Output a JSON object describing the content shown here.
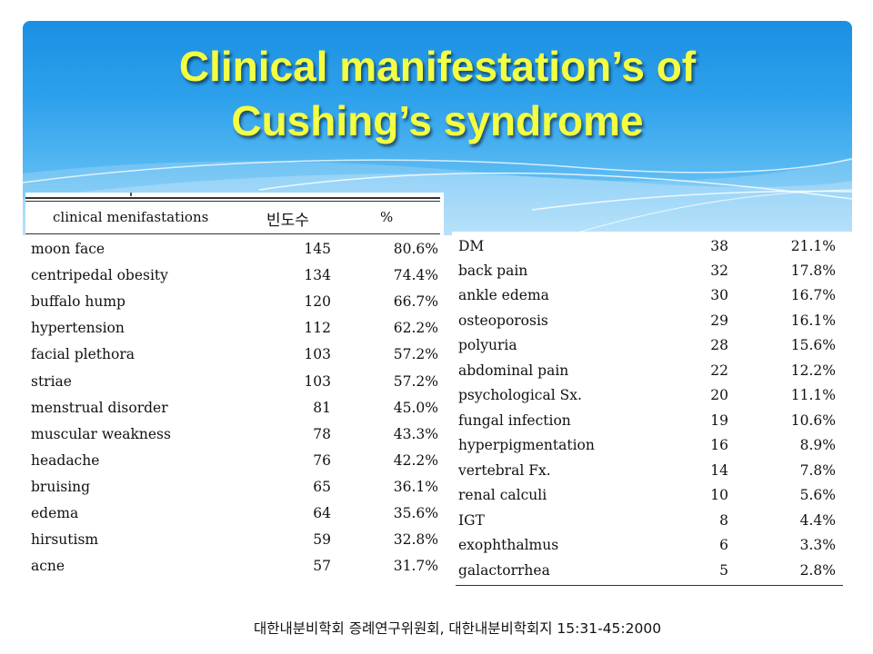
{
  "title_line1": "Clinical manifestation’s of",
  "title_line2": "Cushing’s syndrome",
  "table_left": {
    "headers": {
      "name": "clinical  menifastations",
      "count": "빈도수",
      "percent": "%"
    },
    "rows": [
      {
        "name": "moon  face",
        "count": "145",
        "percent": "80.6%"
      },
      {
        "name": "centripedal  obesity",
        "count": "134",
        "percent": "74.4%"
      },
      {
        "name": "buffalo  hump",
        "count": "120",
        "percent": "66.7%"
      },
      {
        "name": "hypertension",
        "count": "112",
        "percent": "62.2%"
      },
      {
        "name": "facial  plethora",
        "count": "103",
        "percent": "57.2%"
      },
      {
        "name": "striae",
        "count": "103",
        "percent": "57.2%"
      },
      {
        "name": "menstrual  disorder",
        "count": "81",
        "percent": "45.0%"
      },
      {
        "name": "muscular  weakness",
        "count": "78",
        "percent": "43.3%"
      },
      {
        "name": "headache",
        "count": "76",
        "percent": "42.2%"
      },
      {
        "name": "bruising",
        "count": "65",
        "percent": "36.1%"
      },
      {
        "name": "edema",
        "count": "64",
        "percent": "35.6%"
      },
      {
        "name": "hirsutism",
        "count": "59",
        "percent": "32.8%"
      },
      {
        "name": "acne",
        "count": "57",
        "percent": "31.7%"
      }
    ]
  },
  "table_right": {
    "rows": [
      {
        "name": "DM",
        "count": "38",
        "percent": "21.1%"
      },
      {
        "name": "back  pain",
        "count": "32",
        "percent": "17.8%"
      },
      {
        "name": "ankle  edema",
        "count": "30",
        "percent": "16.7%"
      },
      {
        "name": "osteoporosis",
        "count": "29",
        "percent": "16.1%"
      },
      {
        "name": "polyuria",
        "count": "28",
        "percent": "15.6%"
      },
      {
        "name": "abdominal  pain",
        "count": "22",
        "percent": "12.2%"
      },
      {
        "name": "psychological  Sx.",
        "count": "20",
        "percent": "11.1%"
      },
      {
        "name": "fungal  infection",
        "count": "19",
        "percent": "10.6%"
      },
      {
        "name": "hyperpigmentation",
        "count": "16",
        "percent": "8.9%"
      },
      {
        "name": "vertebral  Fx.",
        "count": "14",
        "percent": "7.8%"
      },
      {
        "name": "renal  calculi",
        "count": "10",
        "percent": "5.6%"
      },
      {
        "name": "IGT",
        "count": "8",
        "percent": "4.4%"
      },
      {
        "name": "exophthalmus",
        "count": "6",
        "percent": "3.3%"
      },
      {
        "name": "galactorrhea",
        "count": "5",
        "percent": "2.8%"
      }
    ]
  },
  "citation": "대한내분비학회 증례연구위원회, 대한내분비학회지 15:31-45:2000",
  "colors": {
    "title": "#f4ff42",
    "header_blue": "#2fa2ec"
  }
}
